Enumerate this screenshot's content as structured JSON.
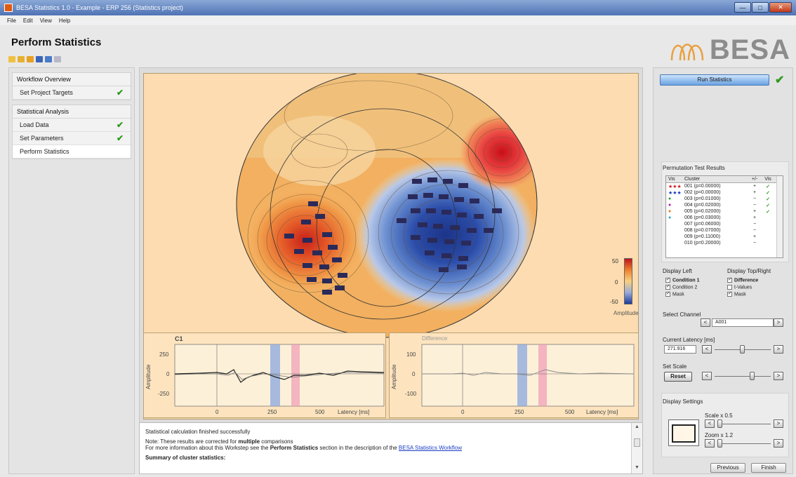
{
  "window": {
    "title": "BESA Statistics 1.0 - Example - ERP 256 (Statistics project)",
    "controls": [
      "—",
      "□",
      "✕"
    ]
  },
  "menu": [
    "File",
    "Edit",
    "View",
    "Help"
  ],
  "page": {
    "title": "Perform Statistics"
  },
  "logo": {
    "text": "BESA"
  },
  "workflow": {
    "overview_header": "Workflow Overview",
    "overview_items": [
      {
        "label": "Set Project Targets",
        "done": "✔"
      }
    ],
    "analysis_header": "Statistical Analysis",
    "analysis_items": [
      {
        "label": "Load Data",
        "done": "✔"
      },
      {
        "label": "Set Parameters",
        "done": "✔"
      },
      {
        "label": "Perform Statistics",
        "done": ""
      }
    ]
  },
  "map": {
    "colorbar_max": "50",
    "colorbar_mid": "0",
    "colorbar_min": "-50",
    "colorbar_label": "Amplitude"
  },
  "wave_left": {
    "channel": "C1",
    "ylabel": "Amplitude",
    "yticks": [
      "250",
      "0",
      "-250"
    ],
    "xticks": [
      "0",
      "250",
      "500"
    ],
    "xlabel": "Latency [ms]"
  },
  "wave_right": {
    "title": "Difference",
    "ylabel": "Amplitude",
    "yticks": [
      "100",
      "0",
      "-100"
    ],
    "xticks": [
      "0",
      "250",
      "500"
    ],
    "xlabel": "Latency [ms]"
  },
  "results": {
    "line1": "Statistical calculation finished successfully",
    "line2_pre": "Note: These results are corrected for ",
    "line2_bold": "multiple",
    "line2_post": " comparisons",
    "line3_pre": "For more information about this Workstep see the ",
    "line3_bold": "Perform Statistics",
    "line3_mid": " section in the description of the ",
    "line3_link": "BESA Statistics Workflow",
    "line4": "Summary of cluster statistics:"
  },
  "right": {
    "run_label": "Run Statistics",
    "run_done": "✔",
    "permutation_title": "Permutation Test Results",
    "list_headers": [
      "Vis",
      "Cluster",
      "+/-",
      "Vis"
    ],
    "clusters": [
      {
        "sym": "★★★",
        "color": "#d01818",
        "label": "001 (p=0.00000)",
        "sign": "+",
        "vis": "✓"
      },
      {
        "sym": "★★★",
        "color": "#1838b8",
        "label": "002 (p=0.00000)",
        "sign": "+",
        "vis": "✓"
      },
      {
        "sym": "●",
        "color": "#2aa02a",
        "label": "003 (p=0.01000)",
        "sign": "−",
        "vis": "✓"
      },
      {
        "sym": "●",
        "color": "#b01aa8",
        "label": "004 (p=0.02000)",
        "sign": "−",
        "vis": "✓"
      },
      {
        "sym": "●",
        "color": "#e07818",
        "label": "005 (p=0.02000)",
        "sign": "+",
        "vis": "✓"
      },
      {
        "sym": "●",
        "color": "#22a8c0",
        "label": "006 (p=0.03000)",
        "sign": "+",
        "vis": ""
      },
      {
        "sym": "",
        "color": "#000000",
        "label": "007 (p=0.06000)",
        "sign": "−",
        "vis": ""
      },
      {
        "sym": "",
        "color": "#000000",
        "label": "008 (p=0.07000)",
        "sign": "−",
        "vis": ""
      },
      {
        "sym": "",
        "color": "#000000",
        "label": "009 (p=0.11000)",
        "sign": "+",
        "vis": ""
      },
      {
        "sym": "",
        "color": "#000000",
        "label": "010 (p=0.20000)",
        "sign": "−",
        "vis": ""
      }
    ],
    "display_left": "Display Left",
    "display_topright": "Display Top/Right",
    "left_opts": [
      "Condition 1",
      "Condition 2",
      "Mask"
    ],
    "right_opts": [
      "Difference",
      "t-Values",
      "Mask"
    ],
    "select_channel": "Select Channel",
    "channel_value": "A001",
    "current_latency": "Current Latency [ms]",
    "latency_value": "271.916",
    "set_scale": "Set Scale",
    "reset_label": "Reset",
    "display_settings": "Display Settings",
    "scale_text": "Scale x 0.5",
    "zoom_text": "Zoom x 1.2",
    "previous_label": "Previous",
    "finish_label": "Finish"
  }
}
